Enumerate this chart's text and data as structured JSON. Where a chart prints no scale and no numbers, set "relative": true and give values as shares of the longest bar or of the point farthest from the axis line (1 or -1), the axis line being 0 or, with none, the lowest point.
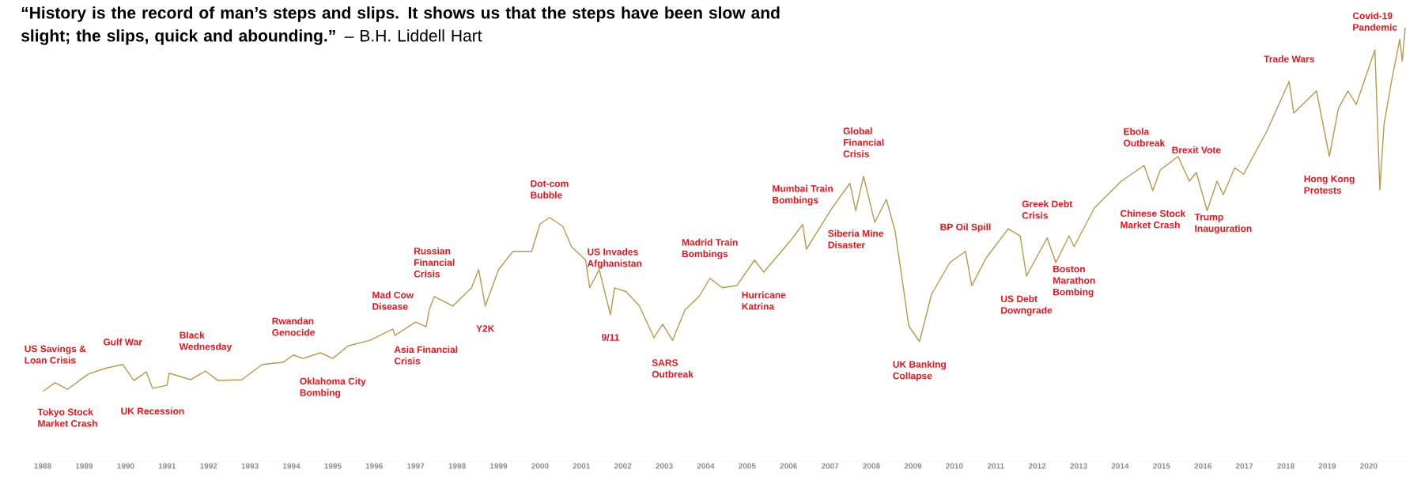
{
  "chart_data": {
    "type": "line",
    "relative": true,
    "title": "**“History is the record of man’s steps and slips. It shows us that the steps have been slow and slight; the slips, quick and abounding.”** – B.H. Liddell Hart",
    "xlim": [
      1987.9,
      2020.9
    ],
    "xticks": [
      1988,
      1989,
      1990,
      1991,
      1992,
      1993,
      1994,
      1995,
      1996,
      1997,
      1998,
      1999,
      2000,
      2001,
      2002,
      2003,
      2004,
      2005,
      2006,
      2007,
      2008,
      2009,
      2010,
      2011,
      2012,
      2013,
      2014,
      2015,
      2016,
      2017,
      2018,
      2019,
      2020
    ],
    "x": [
      1988.0,
      1988.3,
      1988.6,
      1989.1,
      1989.5,
      1989.93,
      1990.2,
      1990.5,
      1990.65,
      1991.0,
      1991.05,
      1991.57,
      1991.93,
      1992.23,
      1992.8,
      1993.3,
      1993.8,
      1994.05,
      1994.28,
      1994.7,
      1995.0,
      1995.37,
      1995.9,
      1996.45,
      1996.5,
      1997.0,
      1997.25,
      1997.33,
      1997.45,
      1997.9,
      1998.35,
      1998.52,
      1998.68,
      1999.0,
      1999.35,
      1999.8,
      2000.0,
      2000.23,
      2000.55,
      2000.76,
      2001.1,
      2001.2,
      2001.43,
      2001.7,
      2001.8,
      2002.08,
      2002.4,
      2002.75,
      2002.96,
      2003.2,
      2003.5,
      2003.84,
      2004.1,
      2004.4,
      2004.75,
      2005.18,
      2005.4,
      2005.73,
      2006.05,
      2006.34,
      2006.43,
      2007.05,
      2007.48,
      2007.62,
      2007.81,
      2008.08,
      2008.36,
      2008.57,
      2008.78,
      2008.9,
      2009.16,
      2009.45,
      2009.89,
      2010.27,
      2010.42,
      2010.77,
      2011.3,
      2011.59,
      2011.74,
      2012.24,
      2012.45,
      2012.77,
      2012.89,
      2013.38,
      2014.03,
      2014.58,
      2014.79,
      2014.97,
      2015.4,
      2015.67,
      2015.84,
      2016.1,
      2016.34,
      2016.49,
      2016.77,
      2016.98,
      2017.54,
      2018.08,
      2018.19,
      2018.74,
      2019.05,
      2019.27,
      2019.5,
      2019.7,
      2020.15,
      2020.27,
      2020.37,
      2020.56,
      2020.75,
      2020.81,
      2020.88
    ],
    "series": [
      {
        "color": "#b8974e",
        "values": [
          0.161,
          0.181,
          0.166,
          0.201,
          0.214,
          0.223,
          0.186,
          0.206,
          0.168,
          0.175,
          0.203,
          0.188,
          0.208,
          0.186,
          0.188,
          0.223,
          0.228,
          0.245,
          0.237,
          0.25,
          0.237,
          0.266,
          0.279,
          0.305,
          0.29,
          0.321,
          0.31,
          0.35,
          0.38,
          0.358,
          0.4,
          0.442,
          0.358,
          0.442,
          0.484,
          0.484,
          0.547,
          0.562,
          0.542,
          0.495,
          0.464,
          0.4,
          0.442,
          0.338,
          0.4,
          0.391,
          0.358,
          0.285,
          0.316,
          0.279,
          0.349,
          0.38,
          0.422,
          0.4,
          0.405,
          0.464,
          0.436,
          0.473,
          0.509,
          0.546,
          0.489,
          0.584,
          0.641,
          0.578,
          0.657,
          0.551,
          0.604,
          0.531,
          0.394,
          0.312,
          0.276,
          0.385,
          0.458,
          0.484,
          0.405,
          0.469,
          0.536,
          0.52,
          0.427,
          0.515,
          0.458,
          0.52,
          0.495,
          0.584,
          0.646,
          0.682,
          0.624,
          0.672,
          0.703,
          0.646,
          0.666,
          0.578,
          0.646,
          0.615,
          0.677,
          0.662,
          0.761,
          0.876,
          0.803,
          0.854,
          0.703,
          0.814,
          0.854,
          0.823,
          0.949,
          0.626,
          0.777,
          0.881,
          0.973,
          0.923,
          1
        ]
      }
    ],
    "annotations": [
      {
        "text": "US Savings & Loan Crisis",
        "x": 1988.3,
        "y": 0.181
      },
      {
        "text": "Tokyo Stock Market Crash",
        "x": 1988.6,
        "y": 0.166
      },
      {
        "text": "Gulf War",
        "x": 1989.93,
        "y": 0.223
      },
      {
        "text": "UK Recession",
        "x": 1990.65,
        "y": 0.168
      },
      {
        "text": "Black Wednesday",
        "x": 1991.93,
        "y": 0.208
      },
      {
        "text": "Rwandan Genocide",
        "x": 1994.05,
        "y": 0.245
      },
      {
        "text": "Oklahoma City Bombing",
        "x": 1995.0,
        "y": 0.237
      },
      {
        "text": "Mad Cow Disease",
        "x": 1996.45,
        "y": 0.305
      },
      {
        "text": "Asia Financial Crisis",
        "x": 1997.25,
        "y": 0.31
      },
      {
        "text": "Russian Financial Crisis",
        "x": 1997.45,
        "y": 0.38
      },
      {
        "text": "Y2K",
        "x": 1998.68,
        "y": 0.358
      },
      {
        "text": "Dot-com Bubble",
        "x": 2000.23,
        "y": 0.562
      },
      {
        "text": "9/11",
        "x": 2001.7,
        "y": 0.338
      },
      {
        "text": "US Invades Afghanistan",
        "x": 2001.8,
        "y": 0.4
      },
      {
        "text": "SARS Outbreak",
        "x": 2003.2,
        "y": 0.279
      },
      {
        "text": "Madrid Train Bombings",
        "x": 2004.1,
        "y": 0.422
      },
      {
        "text": "Hurricane Katrina",
        "x": 2005.4,
        "y": 0.436
      },
      {
        "text": "Mumbai Train Bombings",
        "x": 2006.34,
        "y": 0.546
      },
      {
        "text": "Siberia Mine Disaster",
        "x": 2007.62,
        "y": 0.578
      },
      {
        "text": "Global Financial Crisis",
        "x": 2007.81,
        "y": 0.657
      },
      {
        "text": "UK Banking Collapse",
        "x": 2009.16,
        "y": 0.276
      },
      {
        "text": "BP Oil Spill",
        "x": 2010.27,
        "y": 0.484
      },
      {
        "text": "US Debt Downgrade",
        "x": 2011.74,
        "y": 0.427
      },
      {
        "text": "Greek Debt Crisis",
        "x": 2012.24,
        "y": 0.515
      },
      {
        "text": "Boston Marathon Bombing",
        "x": 2012.89,
        "y": 0.495
      },
      {
        "text": "Ebola Outbreak",
        "x": 2014.58,
        "y": 0.682
      },
      {
        "text": "Chinese Stock Market Crash",
        "x": 2014.79,
        "y": 0.624
      },
      {
        "text": "Brexit Vote",
        "x": 2015.84,
        "y": 0.666
      },
      {
        "text": "Trump Inauguration",
        "x": 2016.49,
        "y": 0.615
      },
      {
        "text": "Trade Wars",
        "x": 2018.08,
        "y": 0.876
      },
      {
        "text": "Hong Kong Protests",
        "x": 2019.05,
        "y": 0.703
      },
      {
        "text": "Covid-19 Pandemic",
        "x": 2020.15,
        "y": 0.949
      }
    ]
  }
}
